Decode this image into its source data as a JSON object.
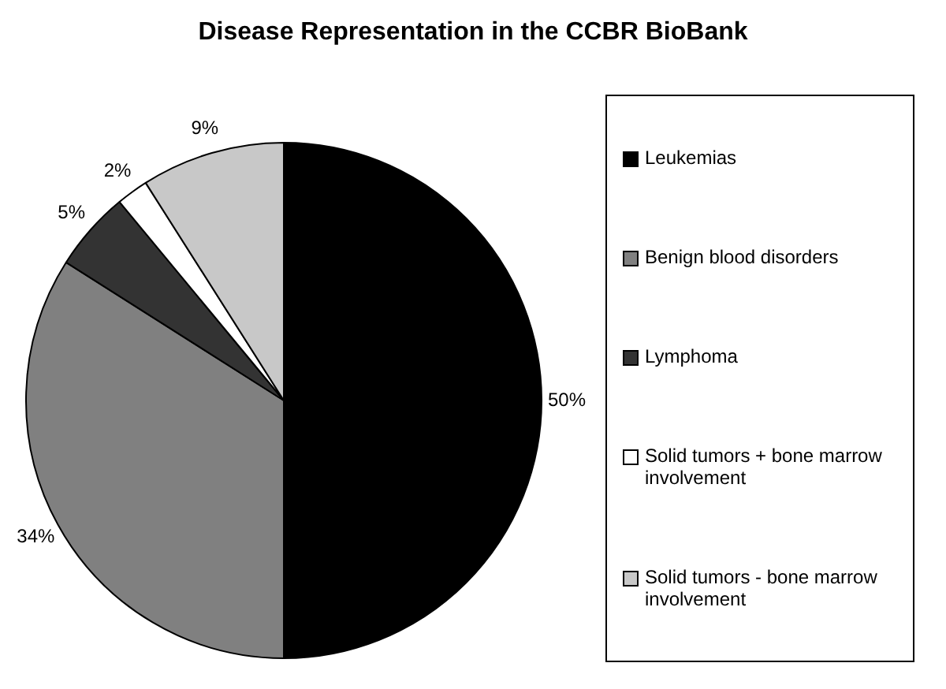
{
  "chart_data": {
    "type": "pie",
    "title": "Disease Representation in the CCBR BioBank",
    "categories": [
      "Leukemias",
      "Benign blood disorders",
      "Lymphoma",
      "Solid tumors + bone marrow involvement",
      "Solid tumors - bone marrow involvement"
    ],
    "values": [
      50,
      34,
      5,
      2,
      9
    ],
    "colors": [
      "#000000",
      "#808080",
      "#333333",
      "#ffffff",
      "#c8c8c8"
    ],
    "value_labels": [
      "50%",
      "34%",
      "5%",
      "2%",
      "9%"
    ],
    "legend": "right"
  }
}
